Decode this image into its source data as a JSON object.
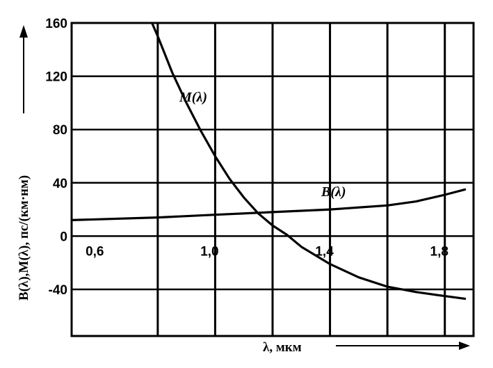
{
  "chart_data": {
    "type": "line",
    "title": "",
    "xlabel": "λ, мкм",
    "ylabel": "B(λ),M(λ), пс/(км·нм)",
    "xlim": [
      0.5,
      1.9
    ],
    "ylim": [
      -75,
      160
    ],
    "grid": true,
    "x_ticks": [
      {
        "value": 0.6,
        "label": "0,6"
      },
      {
        "value": 1.0,
        "label": "1,0"
      },
      {
        "value": 1.4,
        "label": "1,4"
      },
      {
        "value": 1.8,
        "label": "1,8"
      }
    ],
    "x_gridlines": [
      0.8,
      1.0,
      1.2,
      1.4,
      1.6,
      1.8
    ],
    "y_ticks": [
      {
        "value": 160,
        "label": "160"
      },
      {
        "value": 120,
        "label": "120"
      },
      {
        "value": 80,
        "label": "80"
      },
      {
        "value": 40,
        "label": "40"
      },
      {
        "value": 0,
        "label": "0"
      },
      {
        "value": -40,
        "label": "-40"
      }
    ],
    "series": [
      {
        "name": "M(λ)",
        "x": [
          0.78,
          0.8,
          0.85,
          0.9,
          0.95,
          1.0,
          1.05,
          1.1,
          1.15,
          1.2,
          1.25,
          1.3,
          1.4,
          1.5,
          1.6,
          1.7,
          1.8,
          1.87
        ],
        "y": [
          160,
          150,
          123,
          100,
          79,
          60,
          43,
          29,
          17,
          8,
          1,
          -8,
          -21,
          -31,
          -38,
          -42,
          -45,
          -47
        ]
      },
      {
        "name": "B(λ)",
        "x": [
          0.5,
          0.8,
          1.0,
          1.2,
          1.4,
          1.6,
          1.7,
          1.8,
          1.87
        ],
        "y": [
          12,
          14,
          16,
          18,
          20,
          23,
          26,
          31,
          35
        ]
      }
    ]
  }
}
